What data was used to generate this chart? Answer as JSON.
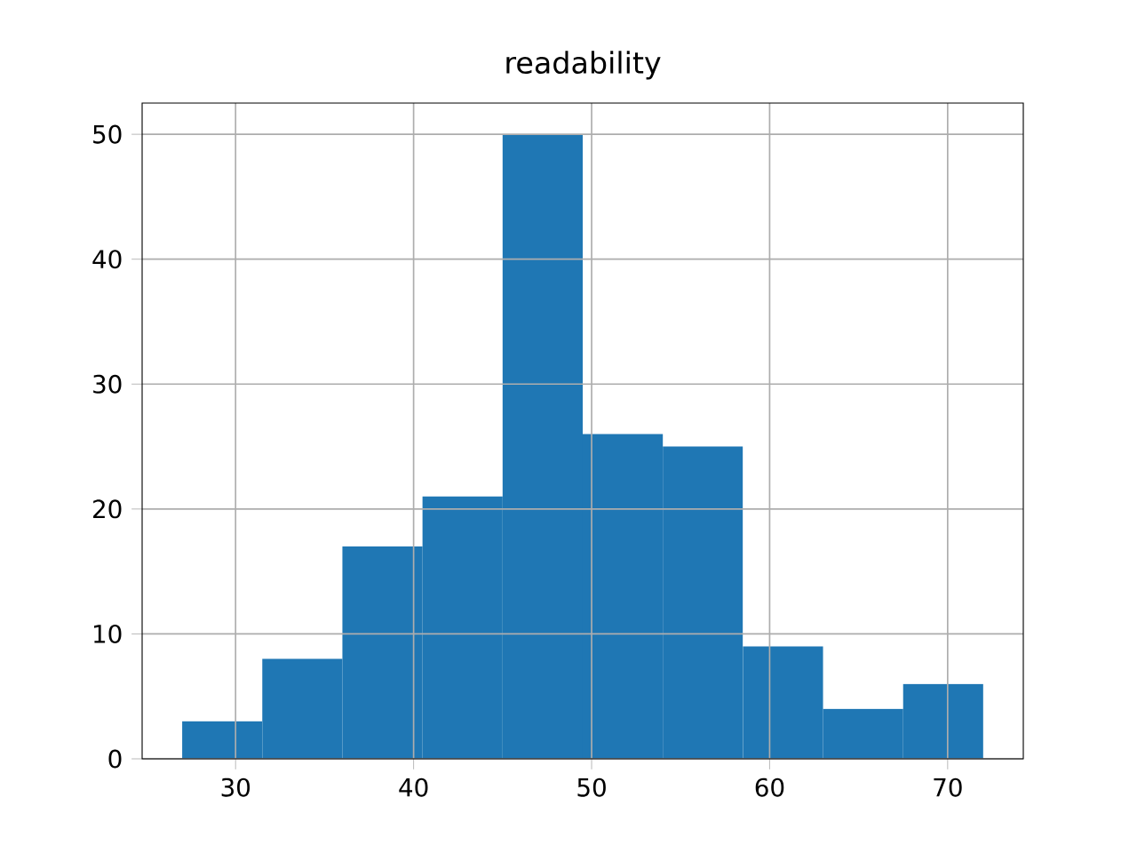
{
  "chart_data": {
    "type": "histogram",
    "title": "readability",
    "bins": [
      27,
      31.5,
      36,
      40.5,
      45,
      49.5,
      54,
      58.5,
      63,
      67.5,
      72
    ],
    "values": [
      3,
      8,
      17,
      21,
      50,
      26,
      25,
      9,
      4,
      6
    ],
    "color": "#1f77b4",
    "xlim": [
      24.75,
      74.25
    ],
    "ylim": [
      0,
      52.5
    ],
    "xticks": [
      30,
      40,
      50,
      60,
      70
    ],
    "yticks": [
      0,
      10,
      20,
      30,
      40,
      50
    ],
    "grid": true
  }
}
